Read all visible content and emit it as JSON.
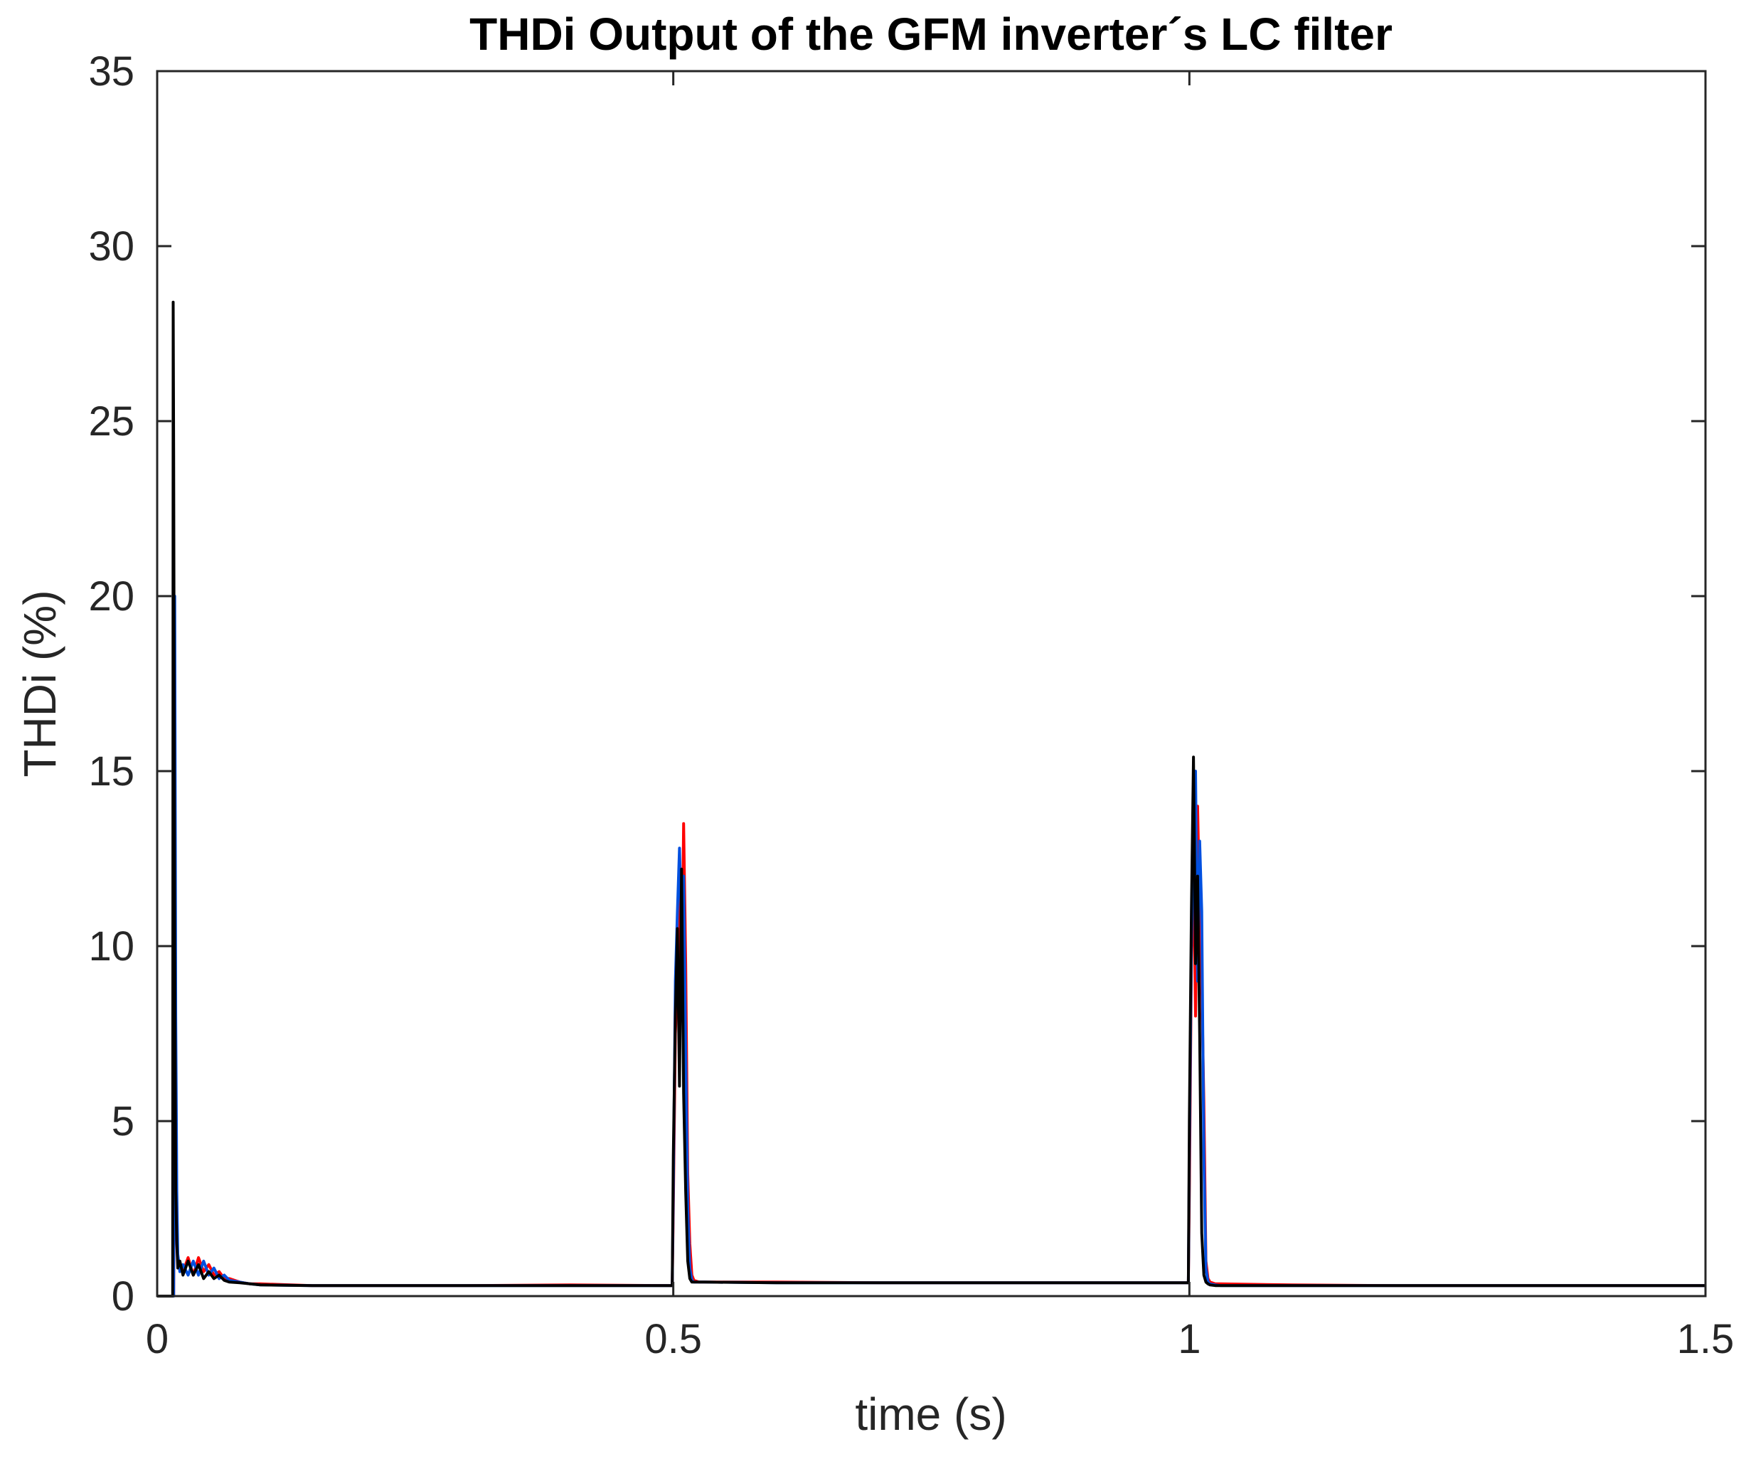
{
  "chart_data": {
    "type": "line",
    "title": "THDi Output of the GFM inverter´s LC filter",
    "xlabel": "time (s)",
    "ylabel": "THDi (%)",
    "xlim": [
      0,
      1.5
    ],
    "ylim": [
      0,
      35
    ],
    "xticks": [
      0,
      0.5,
      1,
      1.5
    ],
    "xtick_labels": [
      "0",
      "0.5",
      "1",
      "1.5"
    ],
    "yticks": [
      0,
      5,
      10,
      15,
      20,
      25,
      30,
      35
    ],
    "ytick_labels": [
      "0",
      "5",
      "10",
      "15",
      "20",
      "25",
      "30",
      "35"
    ],
    "grid": false,
    "box": true,
    "series": [
      {
        "color": "#ff0000",
        "x": [
          0,
          0.016,
          0.017,
          0.018,
          0.019,
          0.02,
          0.022,
          0.025,
          0.03,
          0.035,
          0.04,
          0.045,
          0.05,
          0.055,
          0.06,
          0.065,
          0.07,
          0.08,
          0.09,
          0.1,
          0.15,
          0.2,
          0.3,
          0.4,
          0.499,
          0.5,
          0.502,
          0.504,
          0.506,
          0.508,
          0.51,
          0.512,
          0.514,
          0.516,
          0.518,
          0.52,
          0.525,
          0.53,
          0.6,
          0.7,
          0.8,
          0.9,
          0.999,
          1.0,
          1.002,
          1.004,
          1.006,
          1.008,
          1.01,
          1.012,
          1.014,
          1.016,
          1.018,
          1.02,
          1.025,
          1.03,
          1.1,
          1.2,
          1.3,
          1.4,
          1.5
        ],
        "y": [
          0,
          0,
          6.5,
          4.0,
          2.0,
          1.0,
          0.8,
          0.7,
          1.1,
          0.6,
          1.1,
          0.7,
          0.9,
          0.6,
          0.7,
          0.5,
          0.5,
          0.4,
          0.35,
          0.35,
          0.3,
          0.3,
          0.3,
          0.32,
          0.3,
          2.5,
          7.5,
          9.0,
          12.0,
          8.0,
          13.5,
          9.5,
          3.5,
          1.5,
          0.6,
          0.45,
          0.4,
          0.4,
          0.4,
          0.38,
          0.38,
          0.38,
          0.38,
          3.0,
          9.5,
          12.5,
          8.0,
          14.0,
          11.0,
          9.0,
          5.5,
          1.0,
          0.5,
          0.4,
          0.35,
          0.35,
          0.32,
          0.3,
          0.3,
          0.3,
          0.3
        ]
      },
      {
        "color": "#0050e0",
        "x": [
          0,
          0.016,
          0.017,
          0.018,
          0.019,
          0.02,
          0.022,
          0.025,
          0.03,
          0.035,
          0.04,
          0.045,
          0.05,
          0.055,
          0.06,
          0.065,
          0.07,
          0.08,
          0.09,
          0.1,
          0.15,
          0.2,
          0.3,
          0.4,
          0.499,
          0.5,
          0.502,
          0.504,
          0.506,
          0.508,
          0.51,
          0.512,
          0.514,
          0.516,
          0.518,
          0.52,
          0.525,
          0.53,
          0.6,
          0.7,
          0.8,
          0.9,
          0.999,
          1.0,
          1.002,
          1.004,
          1.006,
          1.008,
          1.01,
          1.012,
          1.014,
          1.016,
          1.018,
          1.02,
          1.025,
          1.03,
          1.1,
          1.2,
          1.3,
          1.4,
          1.5
        ],
        "y": [
          0,
          0,
          20.0,
          8.0,
          3.0,
          1.2,
          0.7,
          0.9,
          0.6,
          1.0,
          0.6,
          1.0,
          0.6,
          0.8,
          0.5,
          0.6,
          0.45,
          0.4,
          0.35,
          0.32,
          0.3,
          0.3,
          0.3,
          0.3,
          0.3,
          3.0,
          9.0,
          11.0,
          12.8,
          10.5,
          12.0,
          7.0,
          2.5,
          0.8,
          0.45,
          0.4,
          0.4,
          0.4,
          0.38,
          0.38,
          0.38,
          0.38,
          0.38,
          4.0,
          10.0,
          13.0,
          15.0,
          9.0,
          13.0,
          11.0,
          4.0,
          0.8,
          0.4,
          0.35,
          0.32,
          0.3,
          0.3,
          0.3,
          0.3,
          0.3,
          0.3
        ]
      },
      {
        "color": "#000000",
        "x": [
          0,
          0.015,
          0.0155,
          0.016,
          0.017,
          0.018,
          0.019,
          0.02,
          0.022,
          0.025,
          0.03,
          0.035,
          0.04,
          0.045,
          0.05,
          0.055,
          0.06,
          0.065,
          0.07,
          0.08,
          0.09,
          0.1,
          0.15,
          0.2,
          0.3,
          0.4,
          0.499,
          0.5,
          0.502,
          0.504,
          0.506,
          0.508,
          0.51,
          0.512,
          0.514,
          0.516,
          0.518,
          0.52,
          0.525,
          0.53,
          0.6,
          0.7,
          0.8,
          0.9,
          0.999,
          1.0,
          1.002,
          1.004,
          1.006,
          1.008,
          1.01,
          1.012,
          1.014,
          1.016,
          1.018,
          1.02,
          1.025,
          1.03,
          1.1,
          1.2,
          1.3,
          1.4,
          1.5
        ],
        "y": [
          0,
          0,
          28.4,
          24.0,
          10.0,
          3.0,
          1.5,
          0.8,
          1.0,
          0.6,
          1.0,
          0.6,
          0.9,
          0.5,
          0.7,
          0.5,
          0.6,
          0.45,
          0.4,
          0.38,
          0.35,
          0.32,
          0.3,
          0.3,
          0.3,
          0.3,
          0.3,
          4.0,
          8.0,
          10.5,
          6.0,
          12.2,
          5.8,
          3.0,
          1.0,
          0.5,
          0.4,
          0.4,
          0.4,
          0.4,
          0.38,
          0.38,
          0.38,
          0.38,
          0.38,
          5.0,
          11.0,
          15.4,
          9.5,
          12.0,
          7.5,
          1.8,
          0.6,
          0.4,
          0.35,
          0.32,
          0.3,
          0.3,
          0.3,
          0.3,
          0.3,
          0.3,
          0.3
        ]
      }
    ]
  }
}
